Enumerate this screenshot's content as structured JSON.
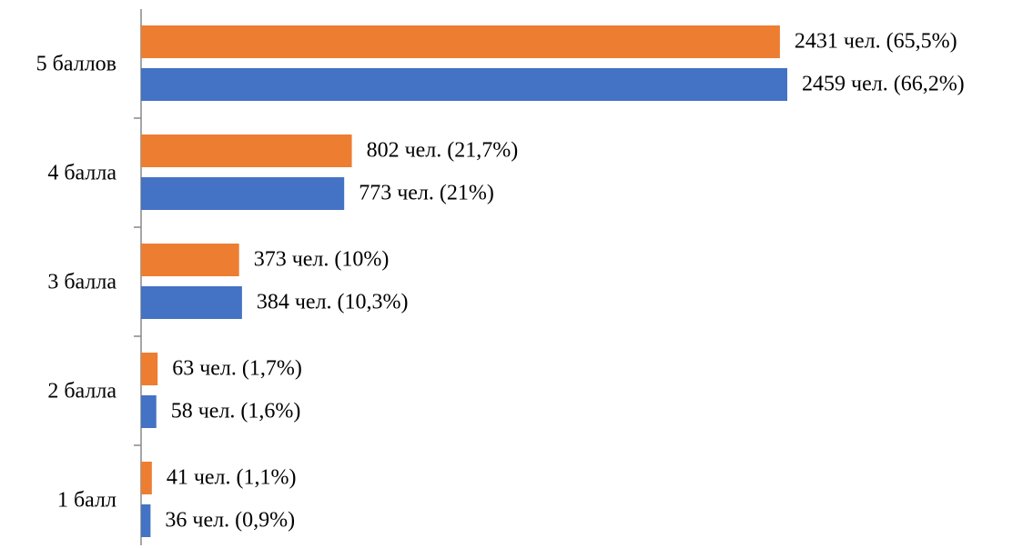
{
  "chart_data": {
    "type": "bar",
    "orientation": "horizontal",
    "categories": [
      "5 баллов",
      "4 балла",
      "3 балла",
      "2 балла",
      "1 балл"
    ],
    "series": [
      {
        "color": "#ed7d31",
        "values": [
          2431,
          802,
          373,
          63,
          41
        ],
        "value_labels": [
          "2431 чел. (65,5%)",
          "802 чел. (21,7%)",
          "373 чел. (10%)",
          "63 чел. (1,7%)",
          "41 чел. (1,1%)"
        ]
      },
      {
        "color": "#4472c4",
        "values": [
          2459,
          773,
          384,
          58,
          36
        ],
        "value_labels": [
          "2459 чел. (66,2%)",
          "773 чел. (21%)",
          "384 чел. (10,3%)",
          "58 чел. (1,6%)",
          "36 чел. (0,9%)"
        ]
      }
    ]
  }
}
